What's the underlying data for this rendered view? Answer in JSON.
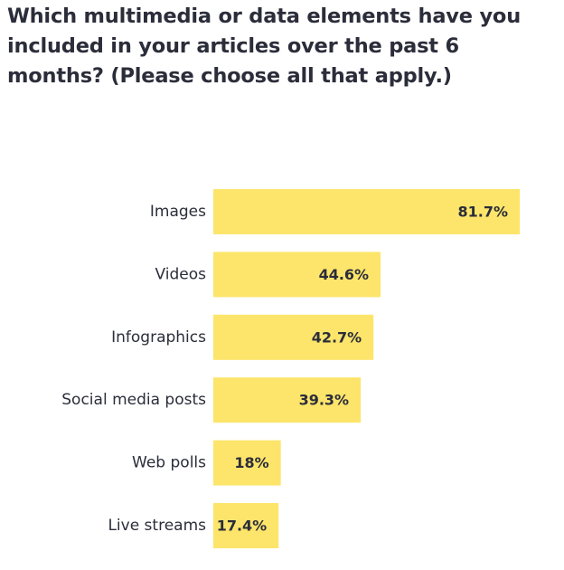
{
  "chart_data": {
    "type": "bar",
    "orientation": "horizontal",
    "title": "Which multimedia or data elements have you included in your articles over the past 6 months? (Please choose all that apply.)",
    "categories": [
      "Images",
      "Videos",
      "Infographics",
      "Social media posts",
      "Web polls",
      "Live streams"
    ],
    "values": [
      81.7,
      44.6,
      42.7,
      39.3,
      18,
      17.4
    ],
    "value_labels": [
      "81.7%",
      "44.6%",
      "42.7%",
      "39.3%",
      "18%",
      "17.4%"
    ],
    "unit": "%",
    "xlim": [
      0,
      100
    ],
    "grid": false,
    "legend": "none",
    "bar_color": "#fde56b"
  }
}
